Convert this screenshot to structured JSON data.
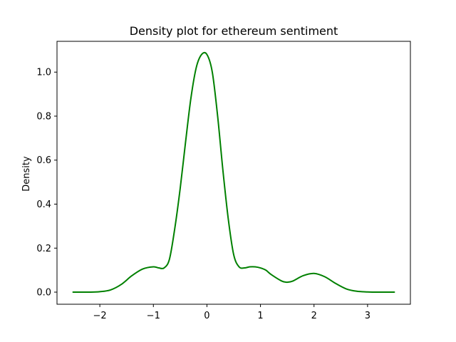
{
  "chart_data": {
    "type": "line",
    "title": "Density plot for ethereum sentiment",
    "xlabel": "",
    "ylabel": "Density",
    "xlim": [
      -2.8,
      3.8
    ],
    "ylim": [
      -0.055,
      1.14
    ],
    "xticks": [
      -2,
      -1,
      0,
      1,
      2,
      3
    ],
    "xtick_labels": [
      "−2",
      "−1",
      "0",
      "1",
      "2",
      "3"
    ],
    "yticks": [
      0.0,
      0.2,
      0.4,
      0.6,
      0.8,
      1.0
    ],
    "ytick_labels": [
      "0.0",
      "0.2",
      "0.4",
      "0.6",
      "0.8",
      "1.0"
    ],
    "grid": false,
    "legend": "none",
    "series": [
      {
        "color": "#008000",
        "x": [
          -2.5,
          -2.2,
          -2.0,
          -1.8,
          -1.6,
          -1.4,
          -1.2,
          -1.0,
          -0.9,
          -0.8,
          -0.7,
          -0.6,
          -0.5,
          -0.4,
          -0.3,
          -0.2,
          -0.1,
          0.0,
          0.1,
          0.2,
          0.3,
          0.4,
          0.5,
          0.6,
          0.7,
          0.8,
          0.9,
          1.0,
          1.1,
          1.2,
          1.4,
          1.5,
          1.6,
          1.8,
          2.0,
          2.2,
          2.4,
          2.6,
          2.8,
          3.0,
          3.2,
          3.5
        ],
        "y": [
          0.0,
          0.0,
          0.002,
          0.01,
          0.035,
          0.075,
          0.105,
          0.115,
          0.11,
          0.11,
          0.15,
          0.29,
          0.47,
          0.68,
          0.88,
          1.02,
          1.08,
          1.08,
          1.0,
          0.8,
          0.55,
          0.33,
          0.17,
          0.115,
          0.11,
          0.115,
          0.115,
          0.11,
          0.1,
          0.08,
          0.05,
          0.045,
          0.05,
          0.075,
          0.085,
          0.07,
          0.04,
          0.015,
          0.004,
          0.001,
          0.0,
          0.0
        ]
      }
    ]
  }
}
